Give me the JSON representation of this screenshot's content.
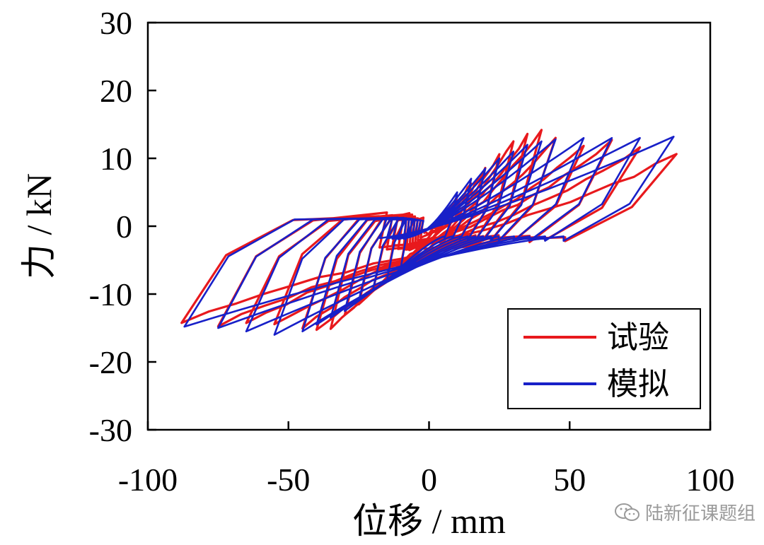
{
  "chart_data": {
    "type": "line",
    "xlabel": "位移 / mm",
    "ylabel": "力 / kN",
    "xlim": [
      -100,
      100
    ],
    "ylim": [
      -30,
      30
    ],
    "xticks": [
      -100,
      -50,
      0,
      50,
      100
    ],
    "yticks": [
      -30,
      -20,
      -10,
      0,
      10,
      20,
      30
    ],
    "legend_position": "bottom-right",
    "grid": false,
    "series": [
      {
        "name": "试验",
        "color": "#e8191d",
        "amplitudes": [
          10,
          15,
          20,
          25,
          30,
          35,
          40,
          45,
          55,
          65,
          75,
          88
        ],
        "positive_peaks": [
          4.5,
          6.5,
          8.5,
          10.5,
          12.5,
          13.5,
          14.3,
          13.0,
          12.0,
          12.5,
          11.5,
          10.5
        ],
        "negative_peaks": [
          -5.5,
          -7.5,
          -9.5,
          -11.5,
          -13.0,
          -15.0,
          -15.5,
          -15.0,
          -14.5,
          -14.0,
          -14.5,
          -14.0
        ]
      },
      {
        "name": "模拟",
        "color": "#1820c8",
        "amplitudes": [
          10,
          15,
          20,
          25,
          30,
          35,
          40,
          45,
          55,
          65,
          75,
          87
        ],
        "positive_peaks": [
          5.0,
          7.0,
          8.5,
          10.0,
          11.0,
          12.0,
          12.5,
          12.8,
          13.0,
          13.0,
          13.0,
          13.2
        ],
        "negative_peaks": [
          -6.0,
          -8.0,
          -9.5,
          -11.0,
          -12.5,
          -13.5,
          -14.5,
          -15.5,
          -16.0,
          -15.5,
          -15.0,
          -14.8
        ]
      }
    ]
  },
  "watermark": {
    "icon": "wechat-icon",
    "text": "陆新征课题组"
  }
}
